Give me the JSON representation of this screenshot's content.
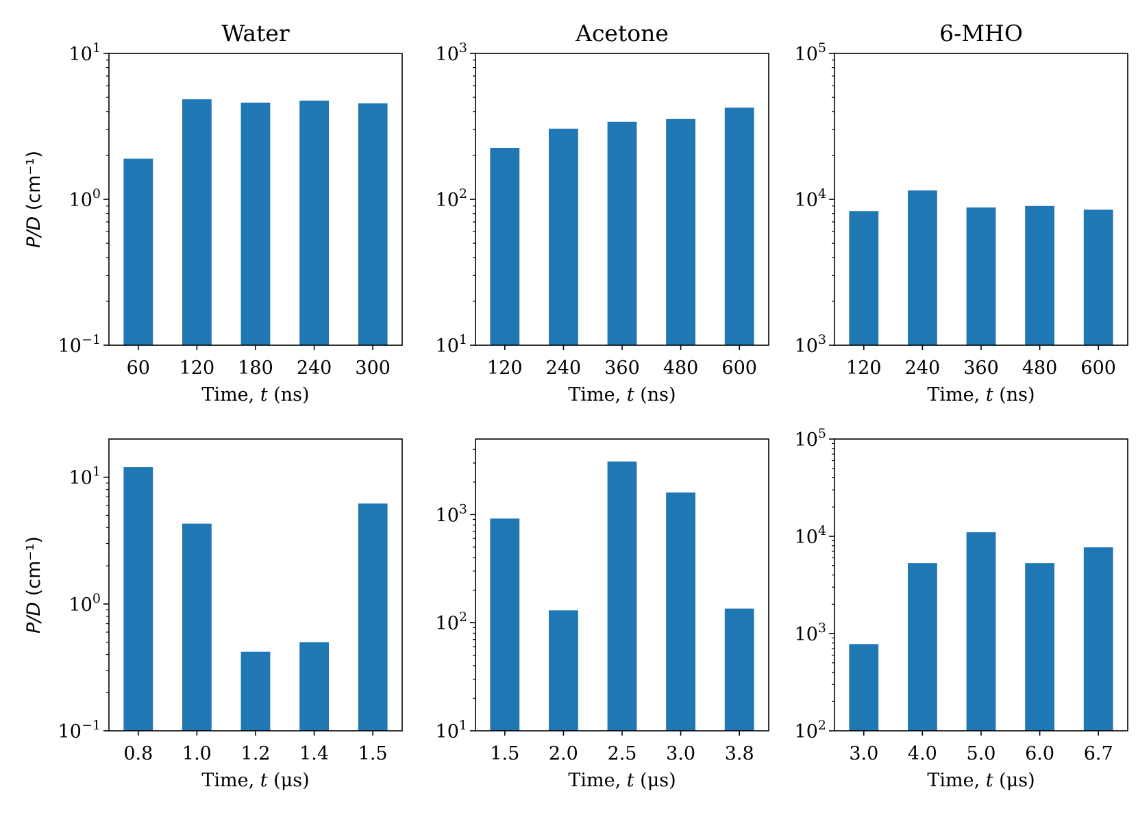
{
  "style": {
    "bar_color": "#1f77b4",
    "grid": false,
    "legend": "none"
  },
  "chart_data": [
    {
      "type": "bar",
      "title": "Water",
      "xlabel_prefix": "Time, ",
      "xlabel_var": "t",
      "xlabel_unit": " (ns)",
      "ylabel": "P/D (cm⁻¹)",
      "yscale": "log",
      "ylim": [
        0.1,
        10
      ],
      "yticks": [
        {
          "base": "10",
          "exp": "−1"
        },
        {
          "base": "10",
          "exp": "0"
        },
        {
          "base": "10",
          "exp": "1"
        }
      ],
      "categories": [
        "60",
        "120",
        "180",
        "240",
        "300"
      ],
      "values": [
        1.9,
        4.85,
        4.6,
        4.75,
        4.55
      ]
    },
    {
      "type": "bar",
      "title": "Acetone",
      "xlabel_prefix": "Time, ",
      "xlabel_var": "t",
      "xlabel_unit": " (ns)",
      "ylabel": "",
      "yscale": "log",
      "ylim": [
        10,
        1000
      ],
      "yticks": [
        {
          "base": "10",
          "exp": "1"
        },
        {
          "base": "10",
          "exp": "2"
        },
        {
          "base": "10",
          "exp": "3"
        }
      ],
      "categories": [
        "120",
        "240",
        "360",
        "480",
        "600"
      ],
      "values": [
        225,
        305,
        340,
        355,
        425
      ]
    },
    {
      "type": "bar",
      "title": "6-MHO",
      "xlabel_prefix": "Time, ",
      "xlabel_var": "t",
      "xlabel_unit": " (ns)",
      "ylabel": "",
      "yscale": "log",
      "ylim": [
        1000,
        100000
      ],
      "yticks": [
        {
          "base": "10",
          "exp": "3"
        },
        {
          "base": "10",
          "exp": "4"
        },
        {
          "base": "10",
          "exp": "5"
        }
      ],
      "categories": [
        "120",
        "240",
        "360",
        "480",
        "600"
      ],
      "values": [
        8300,
        11500,
        8800,
        9000,
        8500
      ]
    },
    {
      "type": "bar",
      "title": "",
      "xlabel_prefix": "Time, ",
      "xlabel_var": "t",
      "xlabel_unit": " (μs)",
      "ylabel": "P/D (cm⁻¹)",
      "yscale": "log",
      "ylim": [
        0.1,
        20
      ],
      "yticks": [
        {
          "base": "10",
          "exp": "−1"
        },
        {
          "base": "10",
          "exp": "0"
        },
        {
          "base": "10",
          "exp": "1"
        }
      ],
      "categories": [
        "0.8",
        "1.0",
        "1.2",
        "1.4",
        "1.5"
      ],
      "values": [
        12,
        4.3,
        0.42,
        0.5,
        6.2
      ]
    },
    {
      "type": "bar",
      "title": "",
      "xlabel_prefix": "Time, ",
      "xlabel_var": "t",
      "xlabel_unit": " (μs)",
      "ylabel": "",
      "yscale": "log",
      "ylim": [
        10,
        5000
      ],
      "yticks": [
        {
          "base": "10",
          "exp": "1"
        },
        {
          "base": "10",
          "exp": "2"
        },
        {
          "base": "10",
          "exp": "3"
        }
      ],
      "categories": [
        "1.5",
        "2.0",
        "2.5",
        "3.0",
        "3.8"
      ],
      "values": [
        920,
        130,
        3100,
        1600,
        135
      ]
    },
    {
      "type": "bar",
      "title": "",
      "xlabel_prefix": "Time, ",
      "xlabel_var": "t",
      "xlabel_unit": " (μs)",
      "ylabel": "",
      "yscale": "log",
      "ylim": [
        100,
        100000
      ],
      "yticks": [
        {
          "base": "10",
          "exp": "2"
        },
        {
          "base": "10",
          "exp": "3"
        },
        {
          "base": "10",
          "exp": "4"
        },
        {
          "base": "10",
          "exp": "5"
        }
      ],
      "categories": [
        "3.0",
        "4.0",
        "5.0",
        "6.0",
        "6.7"
      ],
      "values": [
        780,
        5300,
        11000,
        5300,
        7700
      ]
    }
  ]
}
